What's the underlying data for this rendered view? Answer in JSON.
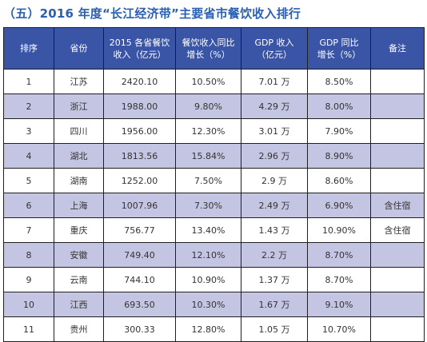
{
  "title": "（五）2016 年度“长江经济带”主要省市餐饮收入排行",
  "headers": [
    {
      "line1": "排序",
      "line2": ""
    },
    {
      "line1": "省份",
      "line2": ""
    },
    {
      "line1": "2015 各省餐饮",
      "line2": "收入（亿元）"
    },
    {
      "line1": "餐饮收入同比",
      "line2": "增长（%）"
    },
    {
      "line1": "GDP 收入",
      "line2": "（亿元）"
    },
    {
      "line1": "GDP 同比",
      "line2": "增长（%）"
    },
    {
      "line1": "备注",
      "line2": ""
    }
  ],
  "rows": [
    {
      "rank": "1",
      "province": "江苏",
      "revenue": "2420.10",
      "revenue_growth": "10.50%",
      "gdp": "7.01 万",
      "gdp_growth": "8.50%",
      "note": ""
    },
    {
      "rank": "2",
      "province": "浙江",
      "revenue": "1988.00",
      "revenue_growth": "9.80%",
      "gdp": "4.29 万",
      "gdp_growth": "8.00%",
      "note": ""
    },
    {
      "rank": "3",
      "province": "四川",
      "revenue": "1956.00",
      "revenue_growth": "12.30%",
      "gdp": "3.01 万",
      "gdp_growth": "7.90%",
      "note": ""
    },
    {
      "rank": "4",
      "province": "湖北",
      "revenue": "1813.56",
      "revenue_growth": "15.84%",
      "gdp": "2.96 万",
      "gdp_growth": "8.90%",
      "note": ""
    },
    {
      "rank": "5",
      "province": "湖南",
      "revenue": "1252.00",
      "revenue_growth": "7.50%",
      "gdp": "2.9 万",
      "gdp_growth": "8.60%",
      "note": ""
    },
    {
      "rank": "6",
      "province": "上海",
      "revenue": "1007.96",
      "revenue_growth": "7.30%",
      "gdp": "2.49 万",
      "gdp_growth": "6.90%",
      "note": "含住宿"
    },
    {
      "rank": "7",
      "province": "重庆",
      "revenue": "756.77",
      "revenue_growth": "13.40%",
      "gdp": "1.43 万",
      "gdp_growth": "10.90%",
      "note": "含住宿"
    },
    {
      "rank": "8",
      "province": "安徽",
      "revenue": "749.40",
      "revenue_growth": "12.10%",
      "gdp": "2.2 万",
      "gdp_growth": "8.70%",
      "note": ""
    },
    {
      "rank": "9",
      "province": "云南",
      "revenue": "744.10",
      "revenue_growth": "10.90%",
      "gdp": "1.37 万",
      "gdp_growth": "8.70%",
      "note": ""
    },
    {
      "rank": "10",
      "province": "江西",
      "revenue": "693.50",
      "revenue_growth": "10.30%",
      "gdp": "1.67 万",
      "gdp_growth": "9.10%",
      "note": ""
    },
    {
      "rank": "11",
      "province": "贵州",
      "revenue": "300.33",
      "revenue_growth": "12.80%",
      "gdp": "1.05 万",
      "gdp_growth": "10.70%",
      "note": ""
    }
  ],
  "colors": {
    "title": "#2a5fb3",
    "header_bg": "#3b55a6",
    "header_text": "#ffffff",
    "alt_row_bg": "#c4c5e3",
    "border": "#1f1f1f"
  }
}
